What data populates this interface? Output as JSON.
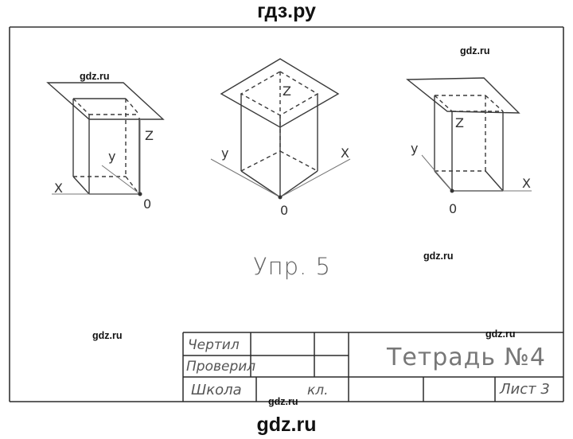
{
  "watermark": {
    "top": "гдз.ру",
    "bottom": "gdz.ru",
    "small": [
      "gdz.ru",
      "gdz.ru",
      "gdz.ru",
      "gdz.ru",
      "gdz.ru",
      "gdz.ru"
    ]
  },
  "figures": [
    {
      "axis_x": "X",
      "axis_y": "y",
      "axis_z": "Z",
      "origin": "0"
    },
    {
      "axis_x": "X",
      "axis_y": "y",
      "axis_z": "Z",
      "origin": "0"
    },
    {
      "axis_x": "X",
      "axis_y": "y",
      "axis_z": "Z",
      "origin": "0"
    }
  ],
  "caption": "Упр. 5",
  "title_block": {
    "drew": "Чертил",
    "checked": "Проверил",
    "school": "Школа",
    "class": "кл.",
    "notebook": "Тетрадь №4",
    "sheet": "Лист 3"
  },
  "colors": {
    "ink": "#3a3a3a",
    "frame": "#2a2a2a",
    "paper": "#ffffff"
  }
}
